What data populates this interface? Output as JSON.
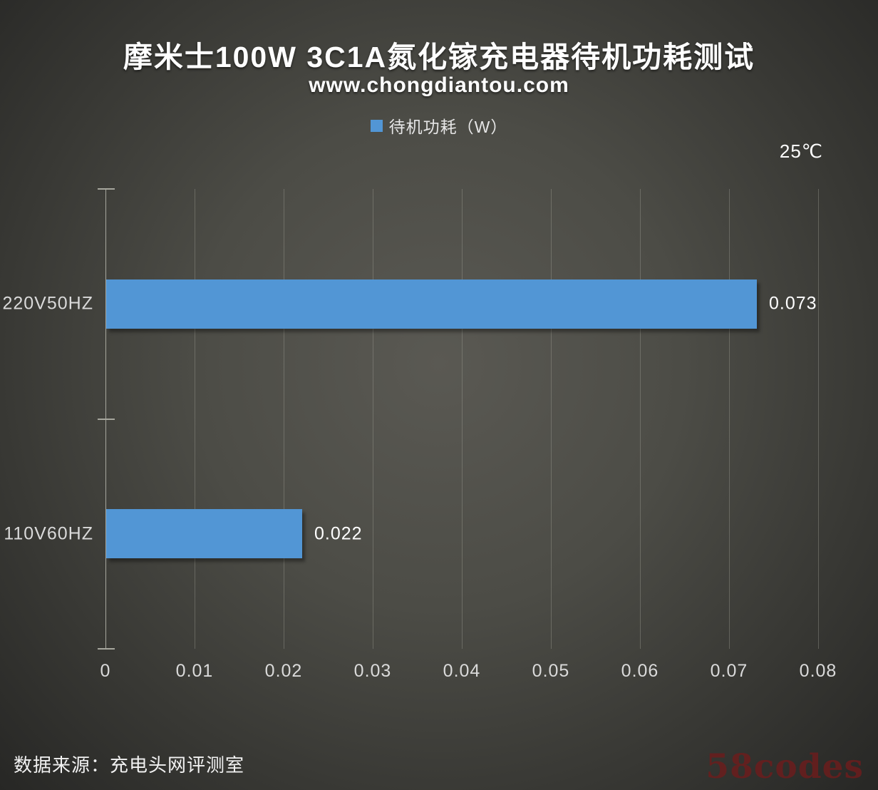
{
  "chart_data": {
    "type": "bar",
    "orientation": "horizontal",
    "title": "摩米士100W 3C1A氮化镓充电器待机功耗测试",
    "subtitle": "www.chongdiantou.com",
    "legend_label": "待机功耗（W）",
    "legend_position": "top",
    "annotation": "25℃",
    "categories": [
      "220V50HZ",
      "110V60HZ"
    ],
    "series": [
      {
        "name": "待机功耗（W）",
        "values": [
          0.073,
          0.022
        ]
      }
    ],
    "values": [
      0.073,
      0.022
    ],
    "value_labels": [
      "0.073",
      "0.022"
    ],
    "xlabel": "",
    "ylabel": "",
    "xlim": [
      0,
      0.08
    ],
    "x_ticks": [
      0,
      0.01,
      0.02,
      0.03,
      0.04,
      0.05,
      0.06,
      0.07,
      0.08
    ],
    "x_tick_labels": [
      "0",
      "0.01",
      "0.02",
      "0.03",
      "0.04",
      "0.05",
      "0.06",
      "0.07",
      "0.08"
    ],
    "grid": true,
    "bar_color": "#5296d5",
    "source_note": "数据来源：充电头网评测室",
    "watermark": "58codes"
  }
}
